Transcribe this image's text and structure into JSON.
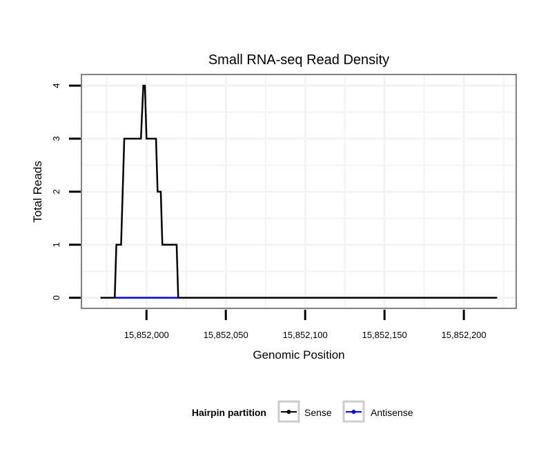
{
  "chart_data": {
    "type": "line",
    "title": "Small RNA-seq Read Density",
    "xlabel": "Genomic Position",
    "ylabel": "Total Reads",
    "xlim": [
      15851959,
      15852233
    ],
    "ylim": [
      -0.2,
      4.21
    ],
    "x_ticks": [
      15852000,
      15852050,
      15852100,
      15852150,
      15852200
    ],
    "x_tick_labels": [
      "15,852,000",
      "15,852,050",
      "15,852,100",
      "15,852,150",
      "15,852,200"
    ],
    "y_ticks": [
      0,
      1,
      2,
      3,
      4
    ],
    "y_tick_labels": [
      "0",
      "1",
      "2",
      "3",
      "4"
    ],
    "grid": true,
    "legend": {
      "title": "Hairpin partition",
      "placement": "bottom"
    },
    "series": [
      {
        "name": "Sense",
        "color": "#000000",
        "x": [
          15851971,
          15851980,
          15851981,
          15851984,
          15851986,
          15851996.5,
          15851998,
          15851999,
          15852000,
          15852006,
          15852007,
          15852009,
          15852010,
          15852019,
          15852020,
          15852221
        ],
        "y": [
          0,
          0,
          1,
          1,
          3,
          3,
          4,
          4,
          3,
          3,
          2,
          2,
          1,
          1,
          0,
          0
        ]
      },
      {
        "name": "Antisense",
        "color": "#0000ff",
        "x": [
          15851980,
          15852020
        ],
        "y": [
          0,
          0
        ]
      }
    ]
  }
}
